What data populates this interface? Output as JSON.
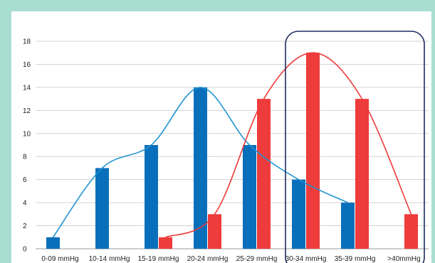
{
  "chart_data": {
    "type": "bar",
    "title": "",
    "xlabel": "",
    "ylabel": "",
    "categories": [
      "0-09 mmHg",
      "10-14 mmHg",
      "15-19 mmHg",
      "20-24 mmHg",
      "25-29 mmHg",
      "30-34 mmHg",
      "35-39 mmHg",
      ">40mmHg"
    ],
    "series": [
      {
        "values": [
          1,
          7,
          9,
          14,
          9,
          6,
          4,
          0
        ],
        "color": "#0a6fba"
      },
      {
        "values": [
          0,
          0,
          1,
          3,
          13,
          17,
          13,
          3
        ],
        "color": "#ee3b3b"
      }
    ],
    "ylim": [
      0,
      18
    ],
    "yticks": [
      0,
      2,
      4,
      6,
      8,
      10,
      12,
      14,
      16,
      18
    ],
    "grid": true,
    "trendlines": true,
    "highlight_box": {
      "from_category": "30-34 mmHg",
      "to_category": ">40mmHg",
      "color": "#1f2b5e"
    }
  }
}
